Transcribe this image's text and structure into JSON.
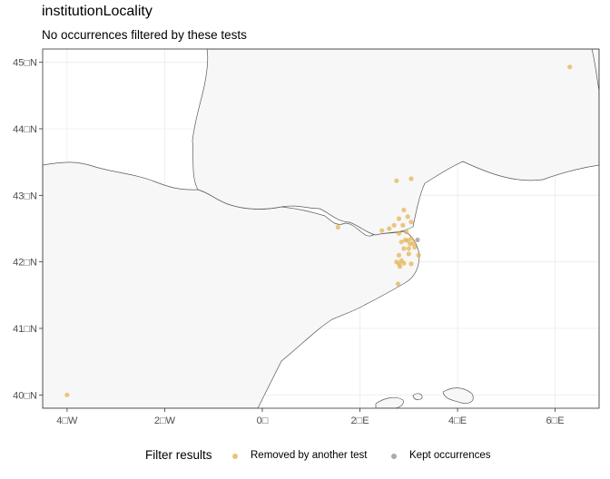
{
  "chart_data": {
    "type": "scatter",
    "title": "institutionLocality",
    "subtitle": "No occurrences filtered by these tests",
    "xlabel": "",
    "ylabel": "",
    "xlim": [
      -4.5,
      6.9
    ],
    "ylim": [
      39.8,
      45.2
    ],
    "x_ticks": [
      {
        "value": -4,
        "label": "4□W"
      },
      {
        "value": -2,
        "label": "2□W"
      },
      {
        "value": 0,
        "label": "0□"
      },
      {
        "value": 2,
        "label": "2□E"
      },
      {
        "value": 4,
        "label": "4□E"
      },
      {
        "value": 6,
        "label": "6□E"
      }
    ],
    "y_ticks": [
      {
        "value": 40,
        "label": "40□N"
      },
      {
        "value": 41,
        "label": "41□N"
      },
      {
        "value": 42,
        "label": "42□N"
      },
      {
        "value": 43,
        "label": "43□N"
      },
      {
        "value": 44,
        "label": "44□N"
      },
      {
        "value": 45,
        "label": "45□N"
      }
    ],
    "grid": true,
    "legend_placement": "bottom",
    "legend_title": "Filter results",
    "colors": {
      "removed": "#e3b04b",
      "kept": "#a9a9a9",
      "land": "#f7f7f7",
      "border": "#5a5a5a",
      "grid": "#ebebeb"
    },
    "series": [
      {
        "name": "Removed by another test",
        "points": [
          [
            -4.0,
            40.0
          ],
          [
            6.3,
            44.93
          ],
          [
            1.55,
            42.52
          ],
          [
            2.75,
            43.22
          ],
          [
            3.05,
            43.25
          ],
          [
            2.9,
            42.78
          ],
          [
            2.8,
            42.65
          ],
          [
            2.98,
            42.68
          ],
          [
            3.05,
            42.6
          ],
          [
            2.7,
            42.55
          ],
          [
            2.6,
            42.5
          ],
          [
            2.88,
            42.55
          ],
          [
            2.45,
            42.47
          ],
          [
            2.8,
            42.43
          ],
          [
            2.95,
            42.45
          ],
          [
            2.85,
            42.3
          ],
          [
            2.98,
            42.32
          ],
          [
            3.05,
            42.35
          ],
          [
            3.1,
            42.28
          ],
          [
            2.9,
            42.2
          ],
          [
            3.0,
            42.2
          ],
          [
            3.12,
            42.22
          ],
          [
            2.8,
            42.1
          ],
          [
            3.0,
            42.12
          ],
          [
            3.2,
            42.1
          ],
          [
            2.75,
            42.0
          ],
          [
            2.8,
            41.97
          ],
          [
            2.85,
            42.02
          ],
          [
            2.82,
            41.93
          ],
          [
            2.9,
            41.98
          ],
          [
            3.05,
            41.97
          ],
          [
            2.78,
            41.67
          ],
          [
            2.93,
            42.33
          ],
          [
            3.03,
            42.27
          ]
        ]
      },
      {
        "name": "Kept occurrences",
        "points": [
          [
            3.18,
            42.33
          ]
        ]
      }
    ]
  }
}
